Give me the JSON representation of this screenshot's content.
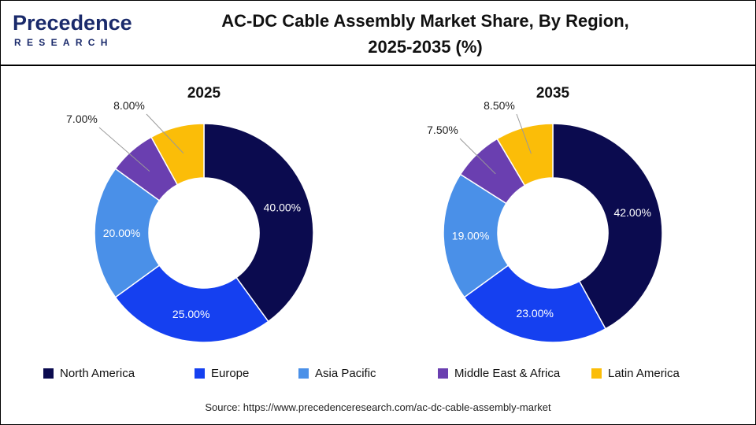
{
  "brand": {
    "name": "Precedence",
    "sub": "RESEARCH"
  },
  "title_line1": "AC-DC Cable Assembly Market Share, By Region,",
  "title_line2": "2025-2035 (%)",
  "source": "Source: https://www.precedenceresearch.com/ac-dc-cable-assembly-market",
  "colors": {
    "North America": "#0b0b4f",
    "Europe": "#1540f0",
    "Asia Pacific": "#4a90e8",
    "Middle East & Africa": "#6a3fb0",
    "Latin America": "#fbbd08"
  },
  "legend": [
    "North America",
    "Europe",
    "Asia Pacific",
    "Middle East & Africa",
    "Latin America"
  ],
  "chart_data": [
    {
      "type": "pie",
      "title": "2025",
      "categories": [
        "North America",
        "Europe",
        "Asia Pacific",
        "Middle East & Africa",
        "Latin America"
      ],
      "values": [
        40.0,
        25.0,
        20.0,
        7.0,
        8.0
      ],
      "labels": [
        "40.00%",
        "25.00%",
        "20.00%",
        "7.00%",
        "8.00%"
      ]
    },
    {
      "type": "pie",
      "title": "2035",
      "categories": [
        "North America",
        "Europe",
        "Asia Pacific",
        "Middle East & Africa",
        "Latin America"
      ],
      "values": [
        42.0,
        23.0,
        19.0,
        7.5,
        8.5
      ],
      "labels": [
        "42.00%",
        "23.00%",
        "19.00%",
        "7.50%",
        "8.50%"
      ]
    }
  ]
}
